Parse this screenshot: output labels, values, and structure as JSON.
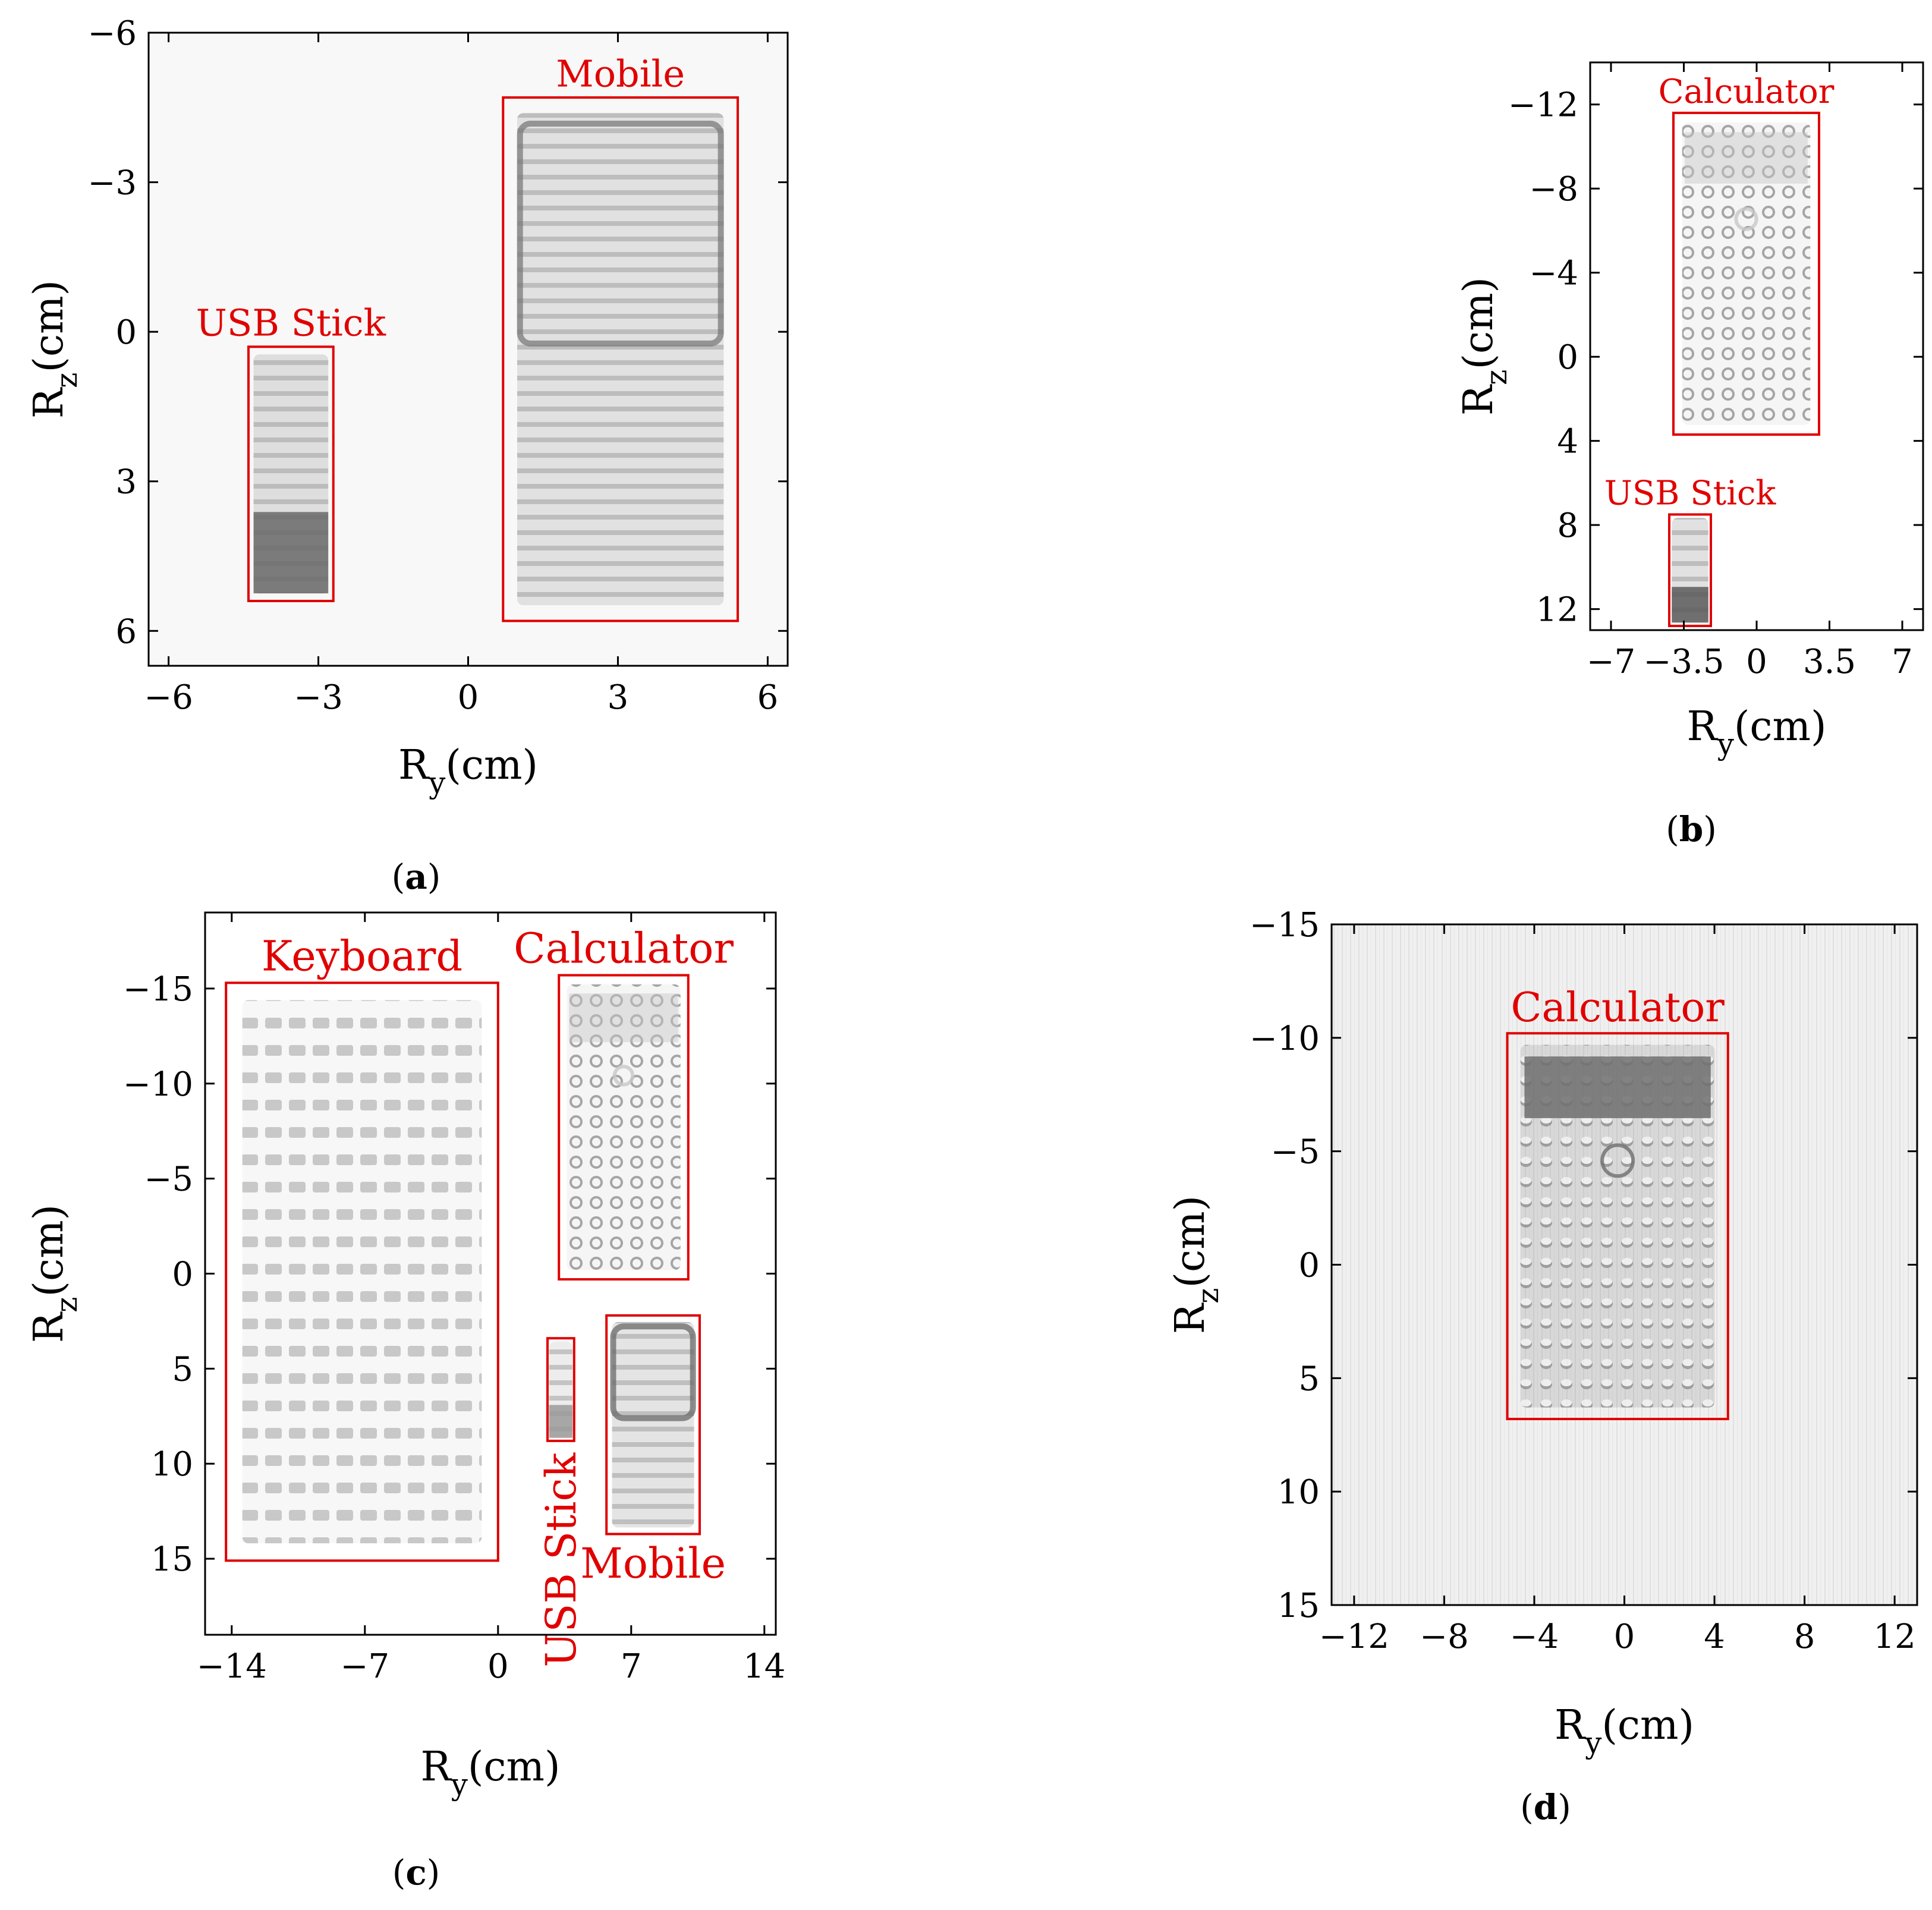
{
  "chart_data": [
    {
      "type": "heatmap",
      "panel": "a",
      "xlabel": "R",
      "xlabel_sub": "y",
      "xlabel_unit": "(cm)",
      "ylabel": "R",
      "ylabel_sub": "z",
      "ylabel_unit": "(cm)",
      "xlim": [
        -6.4,
        6.4
      ],
      "ylim": [
        -6.0,
        6.7
      ],
      "xticks": [
        -6,
        -3,
        0,
        3,
        6
      ],
      "xtick_labels": [
        "−6",
        "−3",
        "0",
        "3",
        "6"
      ],
      "yticks": [
        -6,
        -3,
        0,
        3,
        6
      ],
      "ytick_labels": [
        "−6",
        "−3",
        "0",
        "3",
        "6"
      ],
      "y_reversed": true,
      "background": "#f8f8f8",
      "objects": [
        {
          "label": "USB Stick",
          "box": {
            "y0": -4.4,
            "y1": -2.7,
            "z0": 0.3,
            "z1": 5.4
          },
          "label_pos": "above",
          "shade": "#6a6a6a"
        },
        {
          "label": "Mobile",
          "box": {
            "y0": 0.7,
            "y1": 5.4,
            "z0": -4.7,
            "z1": 5.8
          },
          "label_pos": "above",
          "shade": "#7a7a7a"
        }
      ]
    },
    {
      "type": "heatmap",
      "panel": "b",
      "xlabel": "R",
      "xlabel_sub": "y",
      "xlabel_unit": "(cm)",
      "ylabel": "R",
      "ylabel_sub": "z",
      "ylabel_unit": "(cm)",
      "xlim": [
        -8,
        8
      ],
      "ylim": [
        -14,
        13
      ],
      "xticks": [
        -7,
        -3.5,
        0,
        3.5,
        7
      ],
      "xtick_labels": [
        "−7",
        "−3.5",
        "0",
        "3.5",
        "7"
      ],
      "yticks": [
        -12,
        -8,
        -4,
        0,
        4,
        8,
        12
      ],
      "ytick_labels": [
        "−12",
        "−8",
        "−4",
        "0",
        "4",
        "8",
        "12"
      ],
      "y_reversed": true,
      "background": "#ffffff",
      "objects": [
        {
          "label": "Calculator",
          "box": {
            "y0": -4.0,
            "y1": 3.0,
            "z0": -11.6,
            "z1": 3.7
          },
          "label_pos": "above",
          "shade": "#c8c8c8"
        },
        {
          "label": "USB Stick",
          "box": {
            "y0": -4.2,
            "y1": -2.2,
            "z0": 7.5,
            "z1": 12.8
          },
          "label_pos": "above",
          "shade": "#5a5a5a"
        }
      ]
    },
    {
      "type": "heatmap",
      "panel": "c",
      "xlabel": "R",
      "xlabel_sub": "y",
      "xlabel_unit": "(cm)",
      "ylabel": "R",
      "ylabel_sub": "z",
      "ylabel_unit": "(cm)",
      "xlim": [
        -15.4,
        14.6
      ],
      "ylim": [
        -19,
        19
      ],
      "xticks": [
        -14,
        -7,
        0,
        7,
        14
      ],
      "xtick_labels": [
        "−14",
        "−7",
        "0",
        "7",
        "14"
      ],
      "yticks": [
        -15,
        -10,
        -5,
        0,
        5,
        10,
        15
      ],
      "ytick_labels": [
        "−15",
        "−10",
        "−5",
        "0",
        "5",
        "10",
        "15"
      ],
      "y_reversed": true,
      "background": "#ffffff",
      "objects": [
        {
          "label": "Keyboard",
          "box": {
            "y0": -14.3,
            "y1": 0.0,
            "z0": -15.3,
            "z1": 15.1
          },
          "label_pos": "above",
          "shade": "#d0d0d0"
        },
        {
          "label": "Calculator",
          "box": {
            "y0": 3.2,
            "y1": 10.0,
            "z0": -15.7,
            "z1": 0.3
          },
          "label_pos": "above",
          "shade": "#c8c8c8"
        },
        {
          "label": "USB Stick",
          "box": {
            "y0": 2.6,
            "y1": 4.0,
            "z0": 3.4,
            "z1": 8.8
          },
          "label_pos": "below-vertical",
          "shade": "#9a9a9a"
        },
        {
          "label": "Mobile",
          "box": {
            "y0": 5.7,
            "y1": 10.6,
            "z0": 2.2,
            "z1": 13.7
          },
          "label_pos": "below",
          "shade": "#6a6a6a"
        }
      ]
    },
    {
      "type": "heatmap",
      "panel": "d",
      "xlabel": "R",
      "xlabel_sub": "y",
      "xlabel_unit": "(cm)",
      "ylabel": "R",
      "ylabel_sub": "z",
      "ylabel_unit": "(cm)",
      "xlim": [
        -13,
        13
      ],
      "ylim": [
        -15,
        15
      ],
      "xticks": [
        -12,
        -8,
        -4,
        0,
        4,
        8,
        12
      ],
      "xtick_labels": [
        "−12",
        "−8",
        "−4",
        "0",
        "4",
        "8",
        "12"
      ],
      "yticks": [
        -15,
        -10,
        -5,
        0,
        5,
        10,
        15
      ],
      "ytick_labels": [
        "−15",
        "−10",
        "−5",
        "0",
        "5",
        "10",
        "15"
      ],
      "y_reversed": true,
      "background": "#f0f0f0",
      "objects": [
        {
          "label": "Calculator",
          "box": {
            "y0": -5.2,
            "y1": 4.6,
            "z0": -10.2,
            "z1": 6.8
          },
          "label_pos": "above",
          "shade": "#6e6e6e"
        }
      ]
    }
  ],
  "panel_labels": [
    "(a)",
    "(b)",
    "(c)",
    "(d)"
  ]
}
